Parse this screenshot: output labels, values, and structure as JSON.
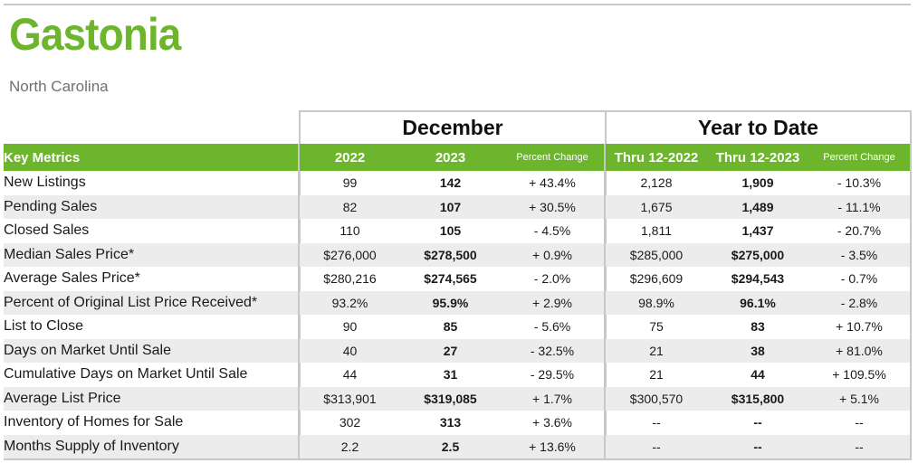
{
  "header": {
    "title": "Gastonia",
    "subtitle": "North Carolina"
  },
  "groups": {
    "month": "December",
    "ytd": "Year to Date"
  },
  "columns": {
    "key": "Key Metrics",
    "y2022": "2022",
    "y2023": "2023",
    "pct": "Percent Change",
    "thru2022": "Thru 12-2022",
    "thru2023": "Thru 12-2023",
    "pct_ytd": "Percent Change"
  },
  "rows": [
    {
      "metric": "New Listings",
      "m2022": "99",
      "m2023": "142",
      "mpct": "+ 43.4%",
      "y2022": "2,128",
      "y2023": "1,909",
      "ypct": "- 10.3%"
    },
    {
      "metric": "Pending Sales",
      "m2022": "82",
      "m2023": "107",
      "mpct": "+ 30.5%",
      "y2022": "1,675",
      "y2023": "1,489",
      "ypct": "- 11.1%"
    },
    {
      "metric": "Closed Sales",
      "m2022": "110",
      "m2023": "105",
      "mpct": "- 4.5%",
      "y2022": "1,811",
      "y2023": "1,437",
      "ypct": "- 20.7%"
    },
    {
      "metric": "Median Sales Price*",
      "m2022": "$276,000",
      "m2023": "$278,500",
      "mpct": "+ 0.9%",
      "y2022": "$285,000",
      "y2023": "$275,000",
      "ypct": "- 3.5%"
    },
    {
      "metric": "Average Sales Price*",
      "m2022": "$280,216",
      "m2023": "$274,565",
      "mpct": "- 2.0%",
      "y2022": "$296,609",
      "y2023": "$294,543",
      "ypct": "- 0.7%"
    },
    {
      "metric": "Percent of Original List Price Received*",
      "m2022": "93.2%",
      "m2023": "95.9%",
      "mpct": "+ 2.9%",
      "y2022": "98.9%",
      "y2023": "96.1%",
      "ypct": "- 2.8%"
    },
    {
      "metric": "List to Close",
      "m2022": "90",
      "m2023": "85",
      "mpct": "- 5.6%",
      "y2022": "75",
      "y2023": "83",
      "ypct": "+ 10.7%"
    },
    {
      "metric": "Days on Market Until Sale",
      "m2022": "40",
      "m2023": "27",
      "mpct": "- 32.5%",
      "y2022": "21",
      "y2023": "38",
      "ypct": "+ 81.0%"
    },
    {
      "metric": "Cumulative Days on Market Until Sale",
      "m2022": "44",
      "m2023": "31",
      "mpct": "- 29.5%",
      "y2022": "21",
      "y2023": "44",
      "ypct": "+ 109.5%"
    },
    {
      "metric": "Average List Price",
      "m2022": "$313,901",
      "m2023": "$319,085",
      "mpct": "+ 1.7%",
      "y2022": "$300,570",
      "y2023": "$315,800",
      "ypct": "+ 5.1%"
    },
    {
      "metric": "Inventory of Homes for Sale",
      "m2022": "302",
      "m2023": "313",
      "mpct": "+ 3.6%",
      "y2022": "--",
      "y2023": "--",
      "ypct": "--"
    },
    {
      "metric": "Months Supply of Inventory",
      "m2022": "2.2",
      "m2023": "2.5",
      "mpct": "+ 13.6%",
      "y2022": "--",
      "y2023": "--",
      "ypct": "--"
    }
  ],
  "colors": {
    "brand_green": "#6db52d",
    "alt_row": "#ececec",
    "border": "#c8c8c8"
  }
}
